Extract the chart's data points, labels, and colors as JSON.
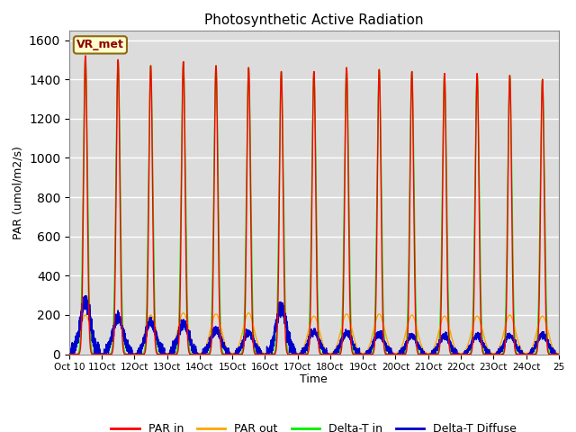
{
  "title": "Photosynthetic Active Radiation",
  "ylabel": "PAR (umol/m2/s)",
  "xlabel": "Time",
  "annotation": "VR_met",
  "ylim": [
    0,
    1650
  ],
  "yticks": [
    0,
    200,
    400,
    600,
    800,
    1000,
    1200,
    1400,
    1600
  ],
  "num_days": 15,
  "start_day": 10,
  "colors": {
    "par_in": "#ff0000",
    "par_out": "#ffa500",
    "delta_t_in": "#00ee00",
    "delta_t_diffuse": "#0000cc"
  },
  "background_color": "#dcdcdc",
  "legend_labels": [
    "PAR in",
    "PAR out",
    "Delta-T in",
    "Delta-T Diffuse"
  ],
  "peaks_par_in": [
    1520,
    1500,
    1470,
    1490,
    1470,
    1460,
    1440,
    1440,
    1460,
    1450,
    1440,
    1430,
    1430,
    1420,
    1400
  ],
  "peaks_par_out": [
    200,
    195,
    200,
    210,
    205,
    210,
    200,
    195,
    205,
    205,
    200,
    195,
    195,
    200,
    195
  ],
  "peaks_diffuse": [
    270,
    190,
    165,
    160,
    125,
    110,
    240,
    115,
    110,
    105,
    95,
    95,
    95,
    95,
    100
  ]
}
